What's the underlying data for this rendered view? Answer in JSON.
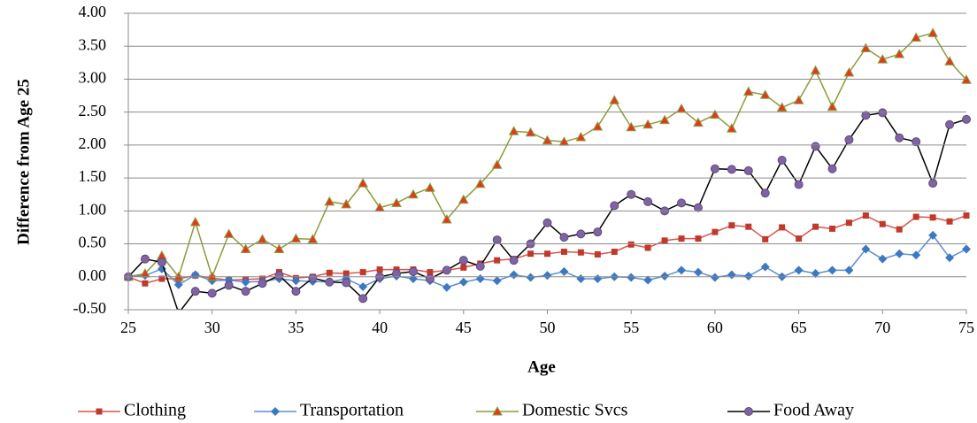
{
  "chart_data": {
    "type": "line",
    "x_label": "Age",
    "y_label": "Difference from Age 25",
    "x": [
      25,
      26,
      27,
      28,
      29,
      30,
      31,
      32,
      33,
      34,
      35,
      36,
      37,
      38,
      39,
      40,
      41,
      42,
      43,
      44,
      45,
      46,
      47,
      48,
      49,
      50,
      51,
      52,
      53,
      54,
      55,
      56,
      57,
      58,
      59,
      60,
      61,
      62,
      63,
      64,
      65,
      66,
      67,
      68,
      69,
      70,
      71,
      72,
      73,
      74,
      75
    ],
    "xlim": [
      25,
      75
    ],
    "xticks": [
      25,
      30,
      35,
      40,
      45,
      50,
      55,
      60,
      65,
      70,
      75
    ],
    "ylim": [
      -0.5,
      4
    ],
    "yticks": [
      {
        "value": -0.5,
        "label": "-0.50"
      },
      {
        "value": 0,
        "label": "0.00"
      },
      {
        "value": 0.5,
        "label": "0.50"
      },
      {
        "value": 1,
        "label": "1.00"
      },
      {
        "value": 1.5,
        "label": "1.50"
      },
      {
        "value": 2,
        "label": "2.00"
      },
      {
        "value": 2.5,
        "label": "2.50"
      },
      {
        "value": 3,
        "label": "3.00"
      },
      {
        "value": 3.5,
        "label": "3.50"
      },
      {
        "value": 4,
        "label": "4.00"
      }
    ],
    "grid": true,
    "legend": "bottom",
    "series": [
      {
        "name": "Clothing",
        "color": "#d9534f",
        "marker": "square",
        "marker_color": "#c0392b",
        "values": [
          0,
          -0.1,
          -0.03,
          -0.03,
          0.02,
          -0.02,
          -0.05,
          -0.04,
          -0.03,
          0.07,
          -0.02,
          0,
          0.06,
          0.05,
          0.07,
          0.11,
          0.11,
          0.11,
          0.07,
          0.1,
          0.14,
          0.2,
          0.25,
          0.27,
          0.35,
          0.35,
          0.38,
          0.37,
          0.34,
          0.38,
          0.49,
          0.44,
          0.55,
          0.58,
          0.58,
          0.68,
          0.78,
          0.76,
          0.57,
          0.75,
          0.58,
          0.76,
          0.73,
          0.82,
          0.93,
          0.8,
          0.72,
          0.91,
          0.9,
          0.84,
          0.93
        ]
      },
      {
        "name": "Transportation",
        "color": "#5b8fd1",
        "marker": "diamond",
        "marker_color": "#3d78c2",
        "values": [
          0,
          0.02,
          0.12,
          -0.12,
          0.03,
          -0.06,
          -0.05,
          -0.08,
          -0.07,
          -0.03,
          -0.06,
          -0.07,
          -0.08,
          -0.03,
          -0.15,
          -0.03,
          0.01,
          -0.03,
          -0.06,
          -0.16,
          -0.08,
          -0.03,
          -0.06,
          0.03,
          -0.01,
          0.02,
          0.08,
          -0.03,
          -0.03,
          0,
          -0.01,
          -0.05,
          0.01,
          0.1,
          0.07,
          -0.01,
          0.03,
          0.01,
          0.15,
          0,
          0.1,
          0.05,
          0.1,
          0.1,
          0.42,
          0.27,
          0.35,
          0.33,
          0.63,
          0.29,
          0.42
        ]
      },
      {
        "name": "Domestic Svcs",
        "color": "#8e9a3a",
        "marker": "triangle",
        "marker_color": "#e03a1e",
        "values": [
          0,
          0.05,
          0.32,
          0,
          0.83,
          0,
          0.65,
          0.42,
          0.57,
          0.42,
          0.58,
          0.57,
          1.14,
          1.1,
          1.42,
          1.05,
          1.12,
          1.25,
          1.35,
          0.87,
          1.17,
          1.41,
          1.7,
          2.21,
          2.19,
          2.07,
          2.05,
          2.12,
          2.28,
          2.68,
          2.27,
          2.31,
          2.38,
          2.55,
          2.34,
          2.46,
          2.25,
          2.81,
          2.76,
          2.57,
          2.68,
          3.13,
          2.58,
          3.1,
          3.47,
          3.3,
          3.38,
          3.63,
          3.7,
          3.27,
          2.99
        ]
      },
      {
        "name": "Food Away",
        "color": "#000000",
        "marker": "circle",
        "marker_color": "#8064a2",
        "values": [
          0,
          0.27,
          0.22,
          -0.55,
          -0.22,
          -0.25,
          -0.13,
          -0.22,
          -0.1,
          0.02,
          -0.22,
          -0.02,
          -0.08,
          -0.09,
          -0.33,
          0,
          0.05,
          0.08,
          -0.03,
          0.1,
          0.25,
          0.16,
          0.56,
          0.25,
          0.5,
          0.82,
          0.6,
          0.65,
          0.68,
          1.08,
          1.25,
          1.14,
          1,
          1.12,
          1.05,
          1.64,
          1.63,
          1.61,
          1.27,
          1.77,
          1.4,
          1.98,
          1.64,
          2.08,
          2.45,
          2.49,
          2.11,
          2.05,
          1.42,
          2.31,
          2.39
        ]
      }
    ]
  }
}
